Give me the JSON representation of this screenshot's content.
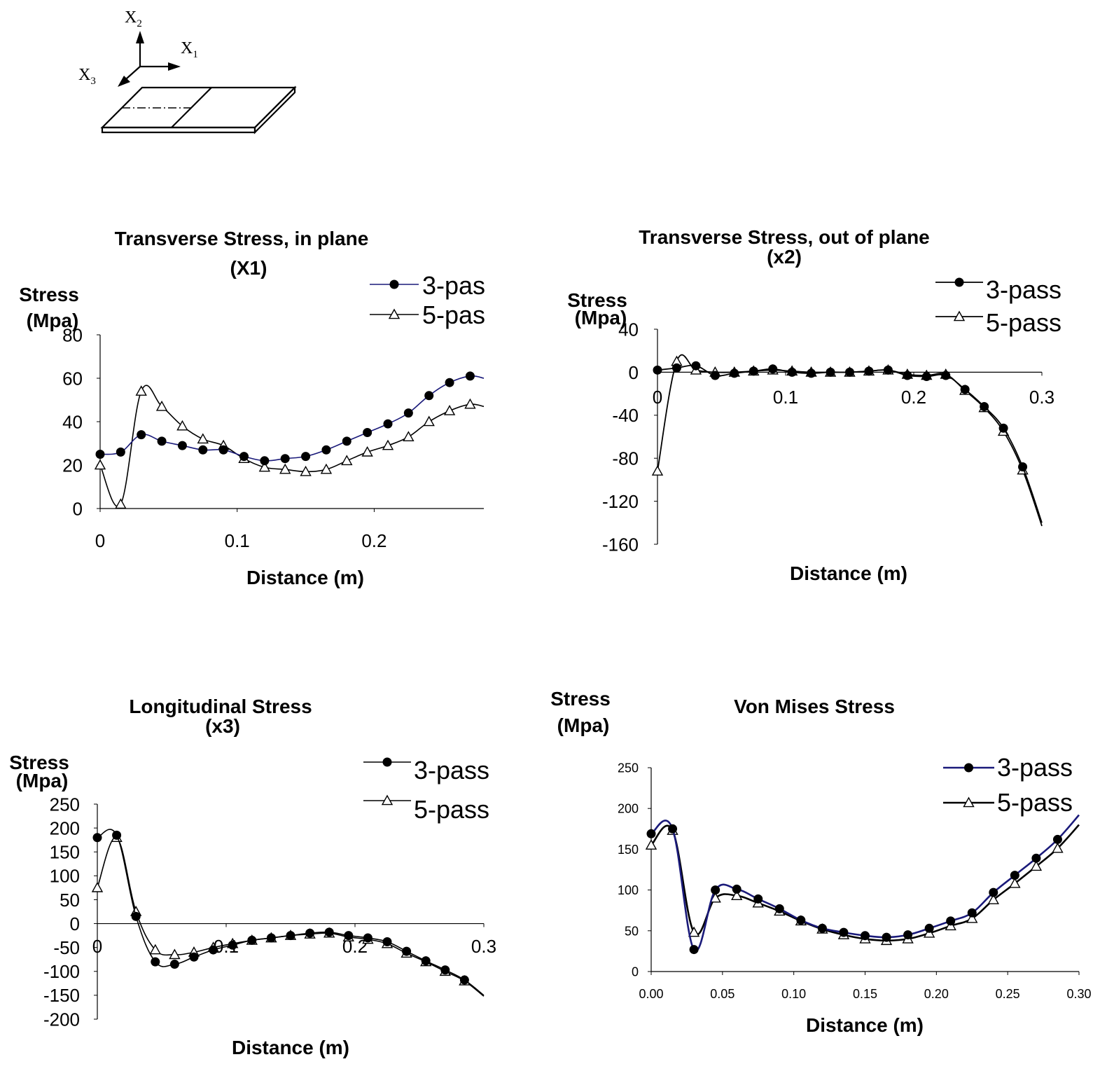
{
  "coordinate_sketch": {
    "labels": [
      {
        "text": "X",
        "sub": "2"
      },
      {
        "text": "X",
        "sub": "1"
      },
      {
        "text": "X",
        "sub": "3"
      }
    ]
  },
  "chart_data": [
    {
      "id": "c1",
      "type": "line",
      "title_lines": [
        "Transverse Stress, in plane",
        "(X1)"
      ],
      "ylabel_lines": [
        "Stress",
        "(Mpa)"
      ],
      "xlabel": "Distance (m)",
      "xlim": [
        0,
        0.28
      ],
      "ylim": [
        0,
        80
      ],
      "xticks": [
        0,
        0.1,
        0.2
      ],
      "xtick_labels": [
        "0",
        "0.1",
        "0.2"
      ],
      "yticks": [
        0,
        20,
        40,
        60,
        80
      ],
      "ytick_labels": [
        "0",
        "20",
        "40",
        "60",
        "80"
      ],
      "legend_labels": [
        "3-pas",
        "5-pas"
      ],
      "series": [
        {
          "name": "3-pass",
          "marker": "circle",
          "color": "#1a1a7a",
          "x": [
            0,
            0.015,
            0.03,
            0.045,
            0.06,
            0.075,
            0.09,
            0.105,
            0.12,
            0.135,
            0.15,
            0.165,
            0.18,
            0.195,
            0.21,
            0.225,
            0.24,
            0.255,
            0.27,
            0.28
          ],
          "y": [
            25,
            26,
            34,
            31,
            29,
            27,
            27,
            24,
            22,
            23,
            24,
            27,
            31,
            35,
            39,
            44,
            52,
            58,
            61,
            60
          ]
        },
        {
          "name": "5-pass",
          "marker": "triangle",
          "color": "#000000",
          "x": [
            0,
            0.015,
            0.03,
            0.045,
            0.06,
            0.075,
            0.09,
            0.105,
            0.12,
            0.135,
            0.15,
            0.165,
            0.18,
            0.195,
            0.21,
            0.225,
            0.24,
            0.255,
            0.27,
            0.28
          ],
          "y": [
            20,
            2,
            54,
            47,
            38,
            32,
            29,
            23,
            19,
            18,
            17,
            18,
            22,
            26,
            29,
            33,
            40,
            45,
            48,
            47
          ]
        }
      ]
    },
    {
      "id": "c2",
      "type": "line",
      "title_lines": [
        "Transverse Stress, out of plane",
        "(x2)"
      ],
      "ylabel_lines": [
        "Stress",
        "(Mpa)"
      ],
      "xlabel": "Distance (m)",
      "xlim": [
        0,
        0.3
      ],
      "ylim": [
        -160,
        40
      ],
      "xticks": [
        0,
        0.1,
        0.2,
        0.3
      ],
      "xtick_labels": [
        "0",
        "0.1",
        "0.2",
        "0.3"
      ],
      "yticks": [
        40,
        0,
        -40,
        -80,
        -120,
        -160
      ],
      "ytick_labels": [
        "40",
        "0",
        "-40",
        "-80",
        "-120",
        "-160"
      ],
      "legend_labels": [
        "3-pass",
        "5-pass"
      ],
      "series": [
        {
          "name": "3-pass",
          "marker": "circle",
          "color": "#000000",
          "x": [
            0,
            0.015,
            0.03,
            0.045,
            0.06,
            0.075,
            0.09,
            0.105,
            0.12,
            0.135,
            0.15,
            0.165,
            0.18,
            0.195,
            0.21,
            0.225,
            0.24,
            0.255,
            0.27,
            0.285,
            0.3
          ],
          "y": [
            2,
            4,
            6,
            -3,
            -1,
            1,
            3,
            0,
            -1,
            0,
            0,
            1,
            2,
            -3,
            -4,
            -3,
            -16,
            -32,
            -52,
            -88,
            -140
          ]
        },
        {
          "name": "5-pass",
          "marker": "triangle",
          "color": "#000000",
          "x": [
            0,
            0.015,
            0.03,
            0.045,
            0.06,
            0.075,
            0.09,
            0.105,
            0.12,
            0.135,
            0.15,
            0.165,
            0.18,
            0.195,
            0.21,
            0.225,
            0.24,
            0.255,
            0.27,
            0.285,
            0.3
          ],
          "y": [
            -92,
            10,
            2,
            0,
            0,
            1,
            2,
            1,
            0,
            0,
            0,
            1,
            2,
            -2,
            -3,
            -2,
            -17,
            -33,
            -55,
            -91,
            -143
          ]
        }
      ]
    },
    {
      "id": "c3",
      "type": "line",
      "title_lines": [
        "Longitudinal Stress",
        "(x3)"
      ],
      "ylabel_lines": [
        "Stress",
        "(Mpa)"
      ],
      "xlabel": "Distance (m)",
      "xlim": [
        0,
        0.3
      ],
      "ylim": [
        -200,
        250
      ],
      "xticks": [
        0,
        0.1,
        0.2,
        0.3
      ],
      "xtick_labels": [
        "0",
        "0.1",
        "0.2",
        "0.3"
      ],
      "yticks": [
        250,
        200,
        150,
        100,
        50,
        0,
        -50,
        -100,
        -150,
        -200
      ],
      "ytick_labels": [
        "250",
        "200",
        "150",
        "100",
        "50",
        "0",
        "-50",
        "-100",
        "-150",
        "-200"
      ],
      "legend_labels": [
        "3-pass",
        "5-pass"
      ],
      "series": [
        {
          "name": "3-pass",
          "marker": "circle",
          "color": "#000000",
          "x": [
            0,
            0.015,
            0.03,
            0.045,
            0.06,
            0.075,
            0.09,
            0.105,
            0.12,
            0.135,
            0.15,
            0.165,
            0.18,
            0.195,
            0.21,
            0.225,
            0.24,
            0.255,
            0.27,
            0.285,
            0.3
          ],
          "y": [
            180,
            185,
            15,
            -80,
            -85,
            -70,
            -55,
            -45,
            -35,
            -30,
            -25,
            -20,
            -18,
            -25,
            -30,
            -38,
            -58,
            -78,
            -97,
            -118,
            -150
          ]
        },
        {
          "name": "5-pass",
          "marker": "triangle",
          "color": "#000000",
          "x": [
            0,
            0.015,
            0.03,
            0.045,
            0.06,
            0.075,
            0.09,
            0.105,
            0.12,
            0.135,
            0.15,
            0.165,
            0.18,
            0.195,
            0.21,
            0.225,
            0.24,
            0.255,
            0.27,
            0.285,
            0.3
          ],
          "y": [
            75,
            180,
            25,
            -55,
            -65,
            -60,
            -50,
            -42,
            -35,
            -30,
            -25,
            -22,
            -20,
            -28,
            -33,
            -42,
            -62,
            -80,
            -100,
            -120,
            -152
          ]
        }
      ]
    },
    {
      "id": "c4",
      "type": "line",
      "title_lines": [
        "Von Mises Stress"
      ],
      "ylabel_lines": [
        "Stress",
        "(Mpa)"
      ],
      "xlabel": "Distance (m)",
      "xlim": [
        0,
        0.3
      ],
      "ylim": [
        0,
        250
      ],
      "xticks": [
        0,
        0.05,
        0.1,
        0.15,
        0.2,
        0.25,
        0.3
      ],
      "xtick_labels": [
        "0.00",
        "0.05",
        "0.10",
        "0.15",
        "0.20",
        "0.25",
        "0.30"
      ],
      "yticks": [
        0,
        50,
        100,
        150,
        200,
        250
      ],
      "ytick_labels": [
        "0",
        "50",
        "100",
        "150",
        "200",
        "250"
      ],
      "legend_labels": [
        "3-pass",
        "5-pass"
      ],
      "series": [
        {
          "name": "3-pass",
          "marker": "circle",
          "color": "#1a1a7a",
          "x": [
            0,
            0.015,
            0.03,
            0.045,
            0.06,
            0.075,
            0.09,
            0.105,
            0.12,
            0.135,
            0.15,
            0.165,
            0.18,
            0.195,
            0.21,
            0.225,
            0.24,
            0.255,
            0.27,
            0.285,
            0.3
          ],
          "y": [
            169,
            175,
            27,
            100,
            101,
            89,
            77,
            63,
            53,
            48,
            44,
            42,
            45,
            53,
            62,
            72,
            97,
            118,
            139,
            162,
            192
          ]
        },
        {
          "name": "5-pass",
          "marker": "triangle",
          "color": "#000000",
          "x": [
            0,
            0.015,
            0.03,
            0.045,
            0.06,
            0.075,
            0.09,
            0.105,
            0.12,
            0.135,
            0.15,
            0.165,
            0.18,
            0.195,
            0.21,
            0.225,
            0.24,
            0.255,
            0.27,
            0.285,
            0.3
          ],
          "y": [
            155,
            173,
            48,
            90,
            93,
            84,
            74,
            62,
            52,
            45,
            40,
            38,
            40,
            47,
            56,
            65,
            88,
            108,
            129,
            151,
            180
          ]
        }
      ]
    }
  ]
}
